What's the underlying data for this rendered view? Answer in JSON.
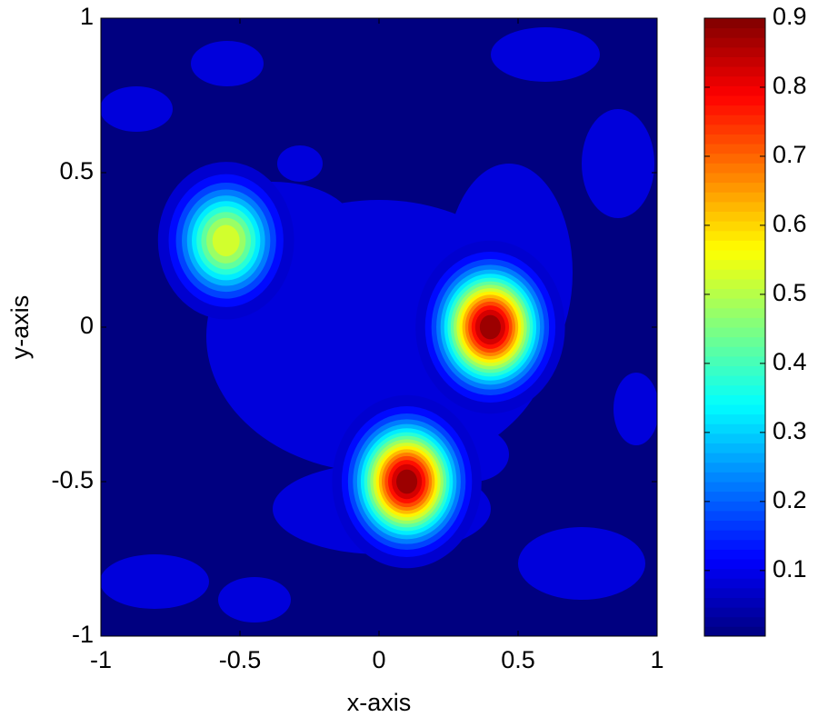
{
  "chart_data": {
    "type": "contour",
    "x_label": "x-axis",
    "y_label": "y-axis",
    "xlim": [
      -1,
      1
    ],
    "ylim": [
      -1,
      1
    ],
    "xticks": [
      -1,
      -0.5,
      0,
      0.5,
      1
    ],
    "yticks": [
      -1,
      -0.5,
      0,
      0.5,
      1
    ],
    "clim": [
      0.005,
      0.9
    ],
    "cticks": [
      0.1,
      0.2,
      0.3,
      0.4,
      0.5,
      0.6,
      0.7,
      0.8,
      0.9
    ],
    "colormap": "jet",
    "peaks": {
      "x": [
        -0.55,
        0.4,
        0.1
      ],
      "y": [
        0.28,
        0.0,
        -0.5
      ],
      "z": [
        0.55,
        0.9,
        0.9
      ]
    }
  }
}
